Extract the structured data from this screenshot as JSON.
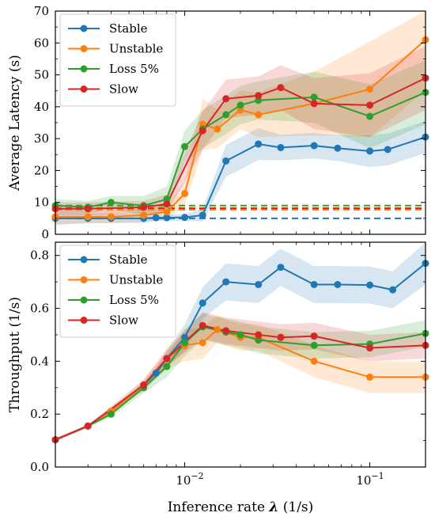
{
  "chart_data": [
    {
      "type": "line",
      "panel": "top",
      "ylabel": "Average Latency (s)",
      "xlabel": "",
      "xscale": "log",
      "xlim": [
        0.002,
        0.2
      ],
      "ylim": [
        0,
        70
      ],
      "yticks": [
        0,
        10,
        20,
        30,
        40,
        50,
        60,
        70
      ],
      "ytick_labels": [
        "0",
        "10",
        "20",
        "30",
        "40",
        "50",
        "60",
        "70"
      ],
      "legend_position": "top-left",
      "series": [
        {
          "name": "Stable",
          "color": "#1f77b4",
          "x": [
            0.002,
            0.003,
            0.004,
            0.006,
            0.007,
            0.008,
            0.01,
            0.0125,
            0.0167,
            0.025,
            0.033,
            0.05,
            0.067,
            0.1,
            0.125,
            0.2
          ],
          "y": [
            5.0,
            5.0,
            5.0,
            5.0,
            5.2,
            5.2,
            5.3,
            6.0,
            23.0,
            28.3,
            27.2,
            27.8,
            27.0,
            26.1,
            26.6,
            30.5
          ],
          "band": [
            2.0,
            1.5,
            1.5,
            1.5,
            1.0,
            1.0,
            1.0,
            2.0,
            5.0,
            5.0,
            4.0,
            4.0,
            4.0,
            5.0,
            5.0,
            5.0
          ]
        },
        {
          "name": "Unstable",
          "color": "#ff7f0e",
          "x": [
            0.002,
            0.003,
            0.004,
            0.006,
            0.008,
            0.01,
            0.0125,
            0.015,
            0.02,
            0.025,
            0.05,
            0.1,
            0.2
          ],
          "y": [
            5.5,
            5.5,
            5.5,
            6.0,
            7.0,
            12.8,
            34.5,
            33.0,
            39.0,
            37.5,
            41.0,
            45.5,
            61.0
          ],
          "band": [
            2.5,
            2.0,
            2.0,
            2.0,
            2.5,
            4.0,
            8.0,
            6.0,
            6.0,
            7.0,
            10.0,
            15.0,
            16.0
          ]
        },
        {
          "name": "Loss 5%",
          "color": "#2ca02c",
          "x": [
            0.002,
            0.003,
            0.004,
            0.006,
            0.008,
            0.01,
            0.0125,
            0.0167,
            0.02,
            0.025,
            0.05,
            0.1,
            0.2
          ],
          "y": [
            9.0,
            8.5,
            10.0,
            9.0,
            11.0,
            27.5,
            33.0,
            37.5,
            40.5,
            42.0,
            43.0,
            37.0,
            44.5
          ],
          "band": [
            2.0,
            2.0,
            2.0,
            3.0,
            4.0,
            5.0,
            6.0,
            6.0,
            6.0,
            6.0,
            8.0,
            10.0,
            10.0
          ]
        },
        {
          "name": "Slow",
          "color": "#d62728",
          "x": [
            0.002,
            0.003,
            0.006,
            0.008,
            0.0125,
            0.0167,
            0.025,
            0.033,
            0.05,
            0.1,
            0.2
          ],
          "y": [
            8.0,
            8.0,
            8.5,
            9.5,
            32.5,
            42.5,
            43.5,
            46.0,
            41.0,
            40.5,
            49.0
          ],
          "band": [
            2.0,
            2.0,
            2.0,
            3.0,
            6.0,
            6.0,
            6.0,
            7.0,
            8.0,
            10.0,
            10.0
          ]
        }
      ],
      "reference_lines": [
        {
          "color": "#1f77b4",
          "y": 5.0,
          "style": "dashed"
        },
        {
          "color": "#ff7f0e",
          "y": 7.7,
          "style": "dashed"
        },
        {
          "color": "#2ca02c",
          "y": 9.0,
          "style": "dashed"
        },
        {
          "color": "#d62728",
          "y": 8.2,
          "style": "dashed"
        }
      ]
    },
    {
      "type": "line",
      "panel": "bottom",
      "ylabel": "Throughput (1/s)",
      "xlabel": "Inference rate λ (1/s)",
      "xscale": "log",
      "xlim": [
        0.002,
        0.2
      ],
      "xticks": [
        0.01,
        0.1
      ],
      "ylim": [
        0.0,
        0.85
      ],
      "yticks": [
        0.0,
        0.2,
        0.4,
        0.6,
        0.8
      ],
      "ytick_labels": [
        "0.0",
        "0.2",
        "0.4",
        "0.6",
        "0.8"
      ],
      "legend_position": "top-left",
      "series": [
        {
          "name": "Stable",
          "color": "#1f77b4",
          "x": [
            0.002,
            0.003,
            0.004,
            0.006,
            0.007,
            0.008,
            0.01,
            0.0125,
            0.0167,
            0.025,
            0.033,
            0.05,
            0.067,
            0.1,
            0.133,
            0.2
          ],
          "y": [
            0.103,
            0.155,
            0.21,
            0.31,
            0.355,
            0.41,
            0.49,
            0.62,
            0.7,
            0.69,
            0.755,
            0.69,
            0.69,
            0.688,
            0.67,
            0.77
          ],
          "band": [
            0.005,
            0.005,
            0.01,
            0.01,
            0.02,
            0.03,
            0.05,
            0.06,
            0.07,
            0.07,
            0.07,
            0.07,
            0.07,
            0.07,
            0.07,
            0.08
          ]
        },
        {
          "name": "Unstable",
          "color": "#ff7f0e",
          "x": [
            0.002,
            0.003,
            0.004,
            0.006,
            0.008,
            0.01,
            0.0125,
            0.015,
            0.02,
            0.025,
            0.05,
            0.1,
            0.2
          ],
          "y": [
            0.103,
            0.155,
            0.21,
            0.31,
            0.41,
            0.46,
            0.47,
            0.52,
            0.49,
            0.49,
            0.4,
            0.34,
            0.34
          ],
          "band": [
            0.005,
            0.005,
            0.01,
            0.02,
            0.04,
            0.06,
            0.06,
            0.05,
            0.05,
            0.05,
            0.06,
            0.06,
            0.06
          ]
        },
        {
          "name": "Loss 5%",
          "color": "#2ca02c",
          "x": [
            0.002,
            0.003,
            0.004,
            0.006,
            0.008,
            0.01,
            0.0125,
            0.0167,
            0.02,
            0.025,
            0.05,
            0.1,
            0.2
          ],
          "y": [
            0.103,
            0.155,
            0.2,
            0.3,
            0.38,
            0.47,
            0.53,
            0.51,
            0.5,
            0.48,
            0.46,
            0.465,
            0.505
          ],
          "band": [
            0.005,
            0.005,
            0.01,
            0.02,
            0.04,
            0.05,
            0.05,
            0.05,
            0.05,
            0.05,
            0.05,
            0.05,
            0.05
          ]
        },
        {
          "name": "Slow",
          "color": "#d62728",
          "x": [
            0.002,
            0.003,
            0.006,
            0.008,
            0.0125,
            0.0167,
            0.025,
            0.033,
            0.05,
            0.1,
            0.2
          ],
          "y": [
            0.103,
            0.155,
            0.31,
            0.41,
            0.535,
            0.515,
            0.5,
            0.49,
            0.495,
            0.45,
            0.46
          ],
          "band": [
            0.005,
            0.005,
            0.02,
            0.03,
            0.05,
            0.05,
            0.05,
            0.05,
            0.05,
            0.05,
            0.05
          ]
        }
      ]
    }
  ],
  "x_axis": {
    "tick_labels": [
      {
        "base": "10",
        "exp": "−2"
      },
      {
        "base": "10",
        "exp": "−1"
      }
    ],
    "label_prefix": "Inference rate ",
    "label_symbol": "λ",
    "label_suffix": " (1/s)"
  }
}
